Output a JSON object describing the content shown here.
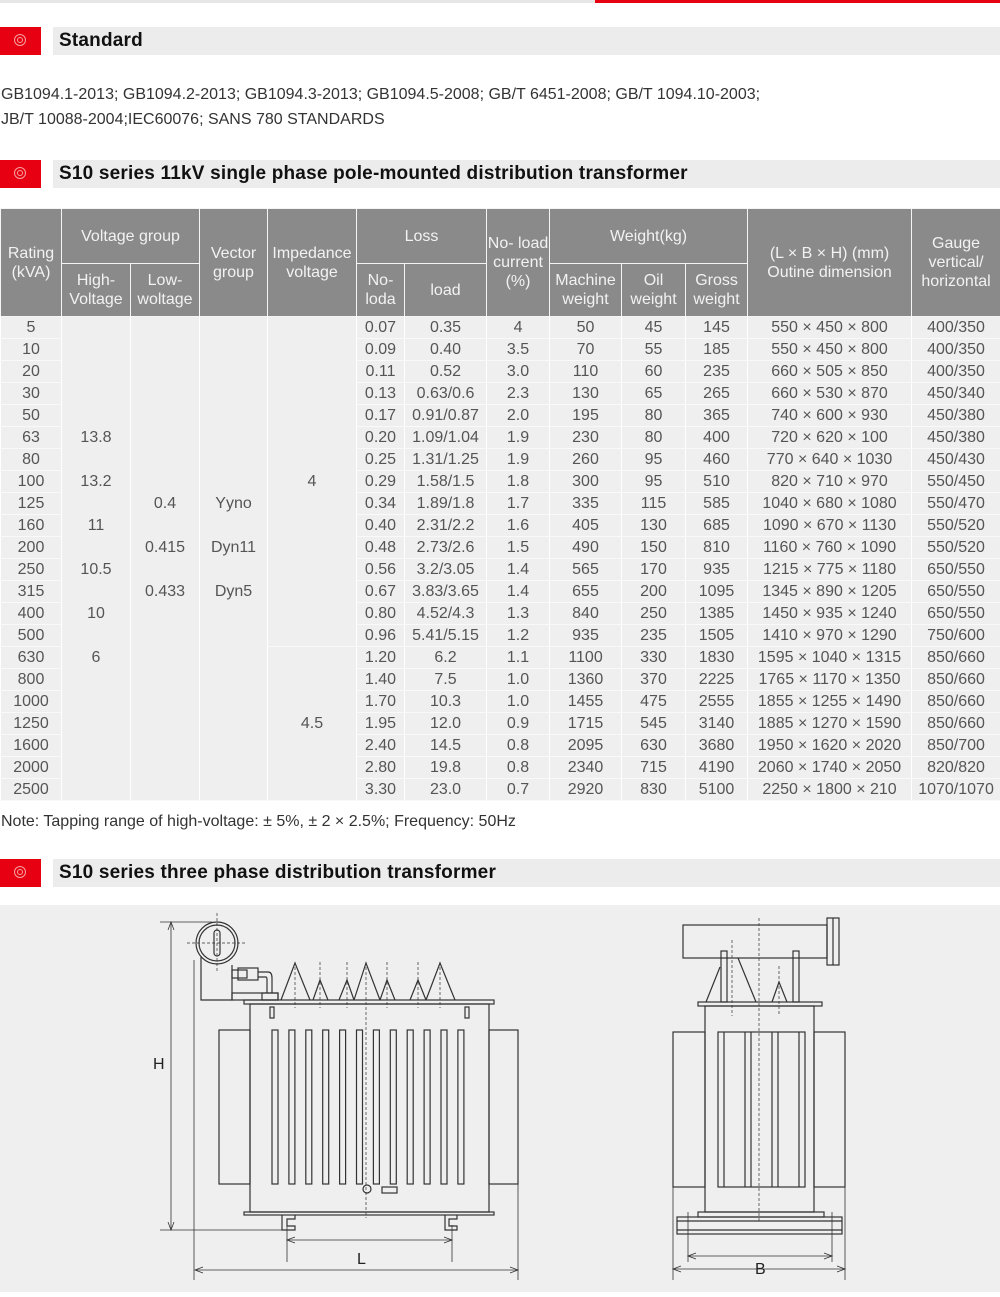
{
  "colors": {
    "accent": "#e60012",
    "header_bg": "#8a8a8a",
    "cell_bg": "#efefef",
    "section_bar": "#ececec"
  },
  "sections": {
    "standard": {
      "title": "Standard",
      "icon": "target-icon"
    },
    "single_phase": {
      "title": "S10 series 11kV single phase pole-mounted distribution transformer",
      "icon": "target-icon"
    },
    "three_phase": {
      "title": "S10 series three phase  distribution transformer",
      "icon": "target-icon"
    }
  },
  "standards": {
    "line1": "GB1094.1-2013; GB1094.2-2013; GB1094.3-2013; GB1094.5-2008; GB/T 6451-2008; GB/T 1094.10-2003;",
    "line2": "JB/T 10088-2004;IEC60076; SANS 780 STANDARDS"
  },
  "table": {
    "headers": {
      "rating": "Rating (kVA)",
      "voltage_group": "Voltage group",
      "high_voltage": "High- Voltage",
      "low_voltage": "Low- woltage",
      "vector_group": "Vector group",
      "impedance": "Impedance voltage",
      "loss": "Loss",
      "no_load_loss": "No- loda",
      "load_loss": "load",
      "no_load_current": "No- load current (%)",
      "weight": "Weight(kg)",
      "machine_weight": "Machine weight",
      "oil_weight": "Oil weight",
      "gross_weight": "Gross weight",
      "dimension": "(L × B × H) (mm) Outine dimension",
      "gauge": "Gauge vertical/ horizontal"
    },
    "high_voltage_values": [
      "13.8",
      "13.2",
      "11",
      "10.5",
      "10",
      "6"
    ],
    "low_voltage_values": [
      "0.4",
      "0.415",
      "0.433"
    ],
    "vector_group_values": [
      "Yyno",
      "Dyn11",
      "Dyn5"
    ],
    "impedance_groups": [
      {
        "value": "4",
        "rows": 15
      },
      {
        "value": "4.5",
        "rows": 7
      }
    ],
    "rows": [
      [
        "5",
        "0.07",
        "0.35",
        "4",
        "50",
        "45",
        "145",
        "550 × 450 × 800",
        "400/350"
      ],
      [
        "10",
        "0.09",
        "0.40",
        "3.5",
        "70",
        "55",
        "185",
        "550 × 450 × 800",
        "400/350"
      ],
      [
        "20",
        "0.11",
        "0.52",
        "3.0",
        "110",
        "60",
        "235",
        "660 × 505 × 850",
        "400/350"
      ],
      [
        "30",
        "0.13",
        "0.63/0.6",
        "2.3",
        "130",
        "65",
        "265",
        "660 × 530 × 870",
        "450/340"
      ],
      [
        "50",
        "0.17",
        "0.91/0.87",
        "2.0",
        "195",
        "80",
        "365",
        "740 × 600 × 930",
        "450/380"
      ],
      [
        "63",
        "0.20",
        "1.09/1.04",
        "1.9",
        "230",
        "80",
        "400",
        "720 × 620 × 100",
        "450/380"
      ],
      [
        "80",
        "0.25",
        "1.31/1.25",
        "1.9",
        "260",
        "95",
        "460",
        "770 × 640 × 1030",
        "450/430"
      ],
      [
        "100",
        "0.29",
        "1.58/1.5",
        "1.8",
        "300",
        "95",
        "510",
        "820 × 710 × 970",
        "550/450"
      ],
      [
        "125",
        "0.34",
        "1.89/1.8",
        "1.7",
        "335",
        "115",
        "585",
        "1040 × 680 × 1080",
        "550/470"
      ],
      [
        "160",
        "0.40",
        "2.31/2.2",
        "1.6",
        "405",
        "130",
        "685",
        "1090 × 670 × 1130",
        "550/520"
      ],
      [
        "200",
        "0.48",
        "2.73/2.6",
        "1.5",
        "490",
        "150",
        "810",
        "1160 × 760 × 1090",
        "550/520"
      ],
      [
        "250",
        "0.56",
        "3.2/3.05",
        "1.4",
        "565",
        "170",
        "935",
        "1215 × 775 × 1180",
        "650/550"
      ],
      [
        "315",
        "0.67",
        "3.83/3.65",
        "1.4",
        "655",
        "200",
        "1095",
        "1345 × 890 × 1205",
        "650/550"
      ],
      [
        "400",
        "0.80",
        "4.52/4.3",
        "1.3",
        "840",
        "250",
        "1385",
        "1450 × 935 × 1240",
        "650/550"
      ],
      [
        "500",
        "0.96",
        "5.41/5.15",
        "1.2",
        "935",
        "235",
        "1505",
        "1410 × 970 × 1290",
        "750/600"
      ],
      [
        "630",
        "1.20",
        "6.2",
        "1.1",
        "1100",
        "330",
        "1830",
        "1595 × 1040 × 1315",
        "850/660"
      ],
      [
        "800",
        "1.40",
        "7.5",
        "1.0",
        "1360",
        "370",
        "2225",
        "1765 × 1170 × 1350",
        "850/660"
      ],
      [
        "1000",
        "1.70",
        "10.3",
        "1.0",
        "1455",
        "475",
        "2555",
        "1855 × 1255 × 1490",
        "850/660"
      ],
      [
        "1250",
        "1.95",
        "12.0",
        "0.9",
        "1715",
        "545",
        "3140",
        "1885 × 1270 × 1590",
        "850/660"
      ],
      [
        "1600",
        "2.40",
        "14.5",
        "0.8",
        "2095",
        "630",
        "3680",
        "1950 × 1620 × 2020",
        "850/700"
      ],
      [
        "2000",
        "2.80",
        "19.8",
        "0.8",
        "2340",
        "715",
        "4190",
        "2060 × 1740 × 2050",
        "820/820"
      ],
      [
        "2500",
        "3.30",
        "23.0",
        "0.7",
        "2920",
        "830",
        "5100",
        "2250 × 1800 × 210",
        "1070/1070"
      ]
    ]
  },
  "note": "Note: Tapping range of high-voltage: ± 5%, ± 2 × 2.5%; Frequency: 50Hz",
  "drawing": {
    "height_label": "H",
    "length_label": "L",
    "width_label": "B"
  }
}
